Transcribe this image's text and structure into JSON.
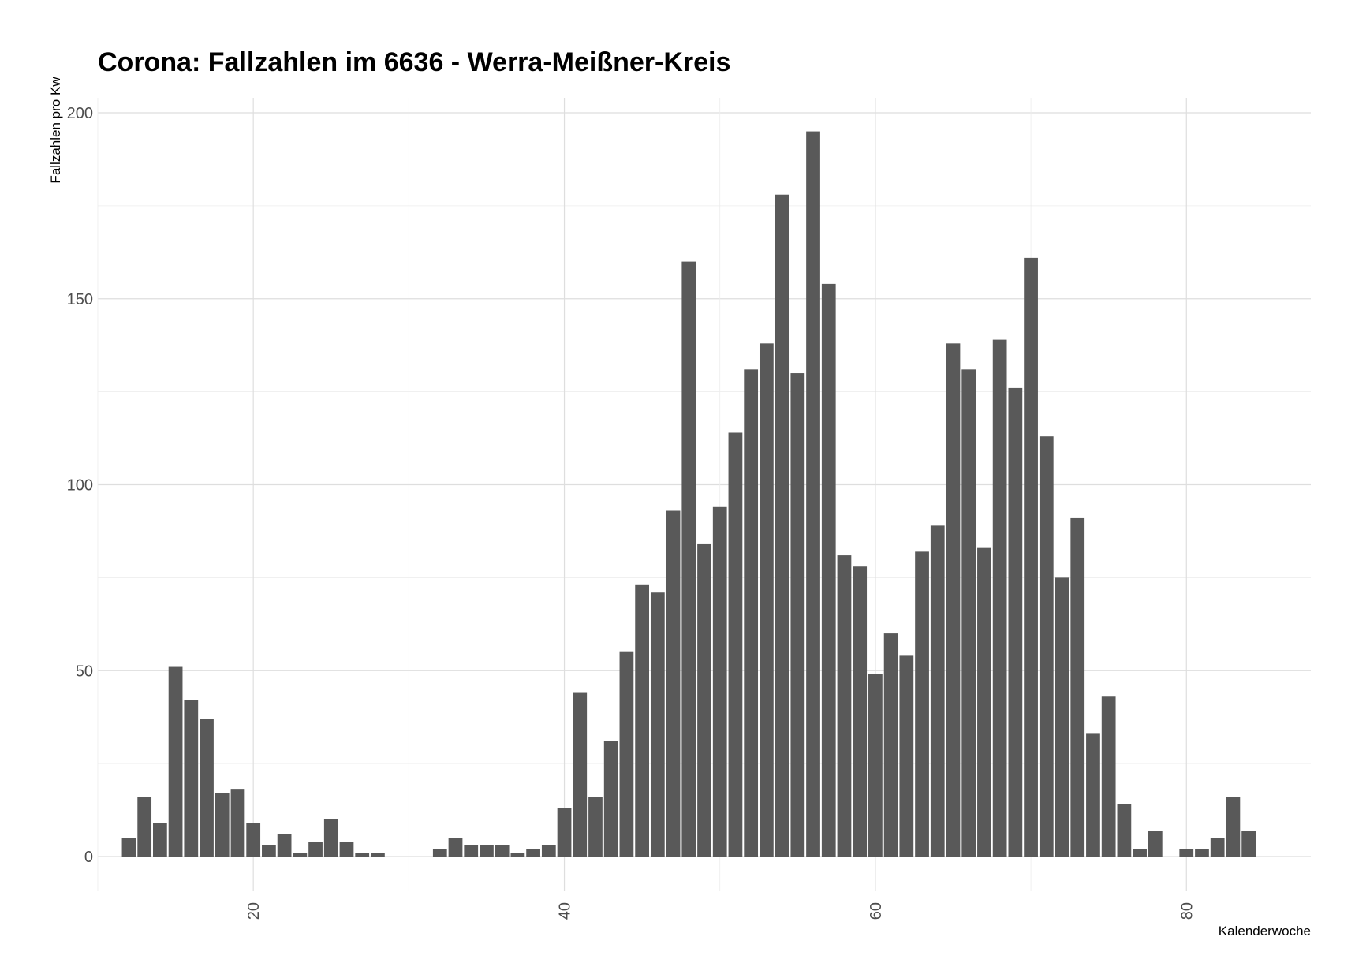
{
  "chart_data": {
    "type": "bar",
    "title": "Corona: Fallzahlen im 6636 - Werra-Meißner-Kreis",
    "xlabel": "Kalenderwoche",
    "ylabel": "Fallzahlen pro Kw",
    "xlim": [
      10,
      88
    ],
    "ylim": [
      0,
      200
    ],
    "x_ticks": [
      20,
      40,
      60,
      80
    ],
    "y_ticks": [
      0,
      50,
      100,
      150,
      200
    ],
    "grid": true,
    "bar_color": "#595959",
    "x": [
      12,
      13,
      14,
      15,
      16,
      17,
      18,
      19,
      20,
      21,
      22,
      23,
      24,
      25,
      26,
      27,
      28,
      32,
      33,
      34,
      35,
      36,
      37,
      38,
      39,
      40,
      41,
      42,
      43,
      44,
      45,
      46,
      47,
      48,
      49,
      50,
      51,
      52,
      53,
      54,
      55,
      56,
      57,
      58,
      59,
      60,
      61,
      62,
      63,
      64,
      65,
      66,
      67,
      68,
      69,
      70,
      71,
      72,
      73,
      74,
      75,
      76,
      77,
      78,
      80,
      81,
      82,
      83,
      84
    ],
    "values": [
      5,
      16,
      9,
      51,
      42,
      37,
      17,
      18,
      9,
      3,
      6,
      1,
      4,
      10,
      4,
      1,
      1,
      2,
      5,
      3,
      3,
      3,
      1,
      2,
      3,
      13,
      44,
      16,
      31,
      55,
      73,
      71,
      93,
      160,
      84,
      94,
      114,
      131,
      138,
      178,
      130,
      195,
      154,
      81,
      78,
      49,
      60,
      54,
      82,
      89,
      138,
      131,
      83,
      139,
      126,
      161,
      113,
      75,
      91,
      33,
      43,
      14,
      2,
      7,
      2,
      2,
      5,
      16,
      7
    ]
  }
}
